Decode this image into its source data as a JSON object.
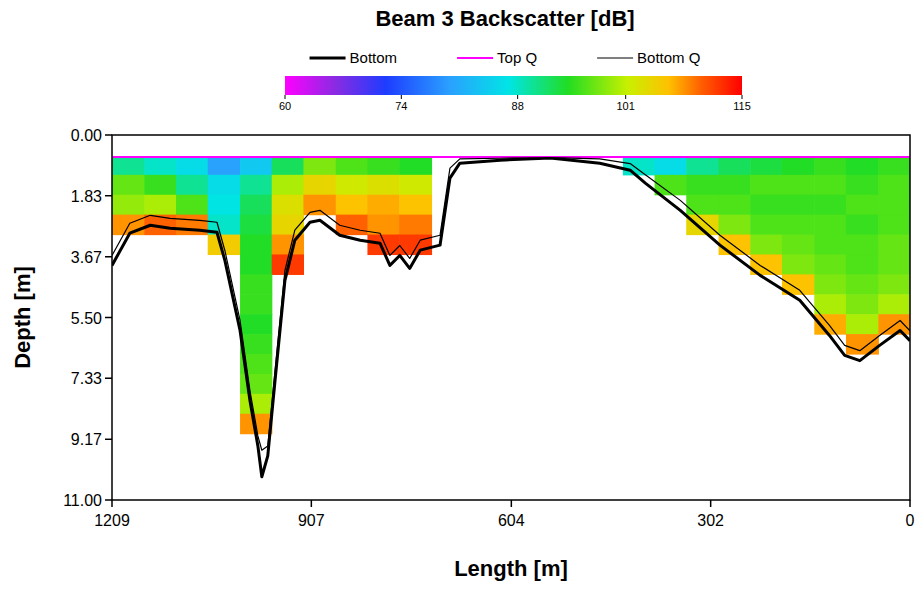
{
  "chart_data": {
    "type": "heatmap",
    "title": "Beam 3 Backscatter [dB]",
    "x_label": "Length [m]",
    "y_label": "Depth [m]",
    "xlim": [
      1209,
      0
    ],
    "ylim": [
      11,
      0
    ],
    "xticks": [
      1209,
      907,
      604,
      302,
      0
    ],
    "yticks": [
      {
        "value": 0,
        "label": "0.00"
      },
      {
        "value": 1.83,
        "label": "1.83"
      },
      {
        "value": 3.67,
        "label": "3.67"
      },
      {
        "value": 5.5,
        "label": "5.50"
      },
      {
        "value": 7.33,
        "label": "7.33"
      },
      {
        "value": 9.17,
        "label": "9.17"
      },
      {
        "value": 11,
        "label": "11.00"
      }
    ],
    "legend": "top",
    "heatmap": {
      "x_edges": [
        1209,
        1160,
        1112,
        1064,
        1015,
        967,
        919,
        870,
        822,
        774,
        725,
        677,
        629,
        580,
        532,
        484,
        435,
        387,
        339,
        290,
        242,
        194,
        145,
        97,
        48,
        0
      ],
      "y_edges": [
        0.66,
        1.2,
        1.8,
        2.4,
        3.0,
        3.6,
        4.2,
        4.8,
        5.4,
        6.0,
        6.6,
        7.2,
        7.8,
        8.4,
        9.0
      ],
      "cells": [
        [
          90,
          88,
          86,
          80,
          84,
          92,
          98,
          96,
          95,
          94,
          null,
          null,
          null,
          null,
          null,
          null,
          88,
          86,
          90,
          92,
          93,
          94,
          95,
          94,
          95
        ],
        [
          97,
          95,
          90,
          86,
          90,
          100,
          104,
          102,
          103,
          102,
          null,
          null,
          null,
          null,
          null,
          null,
          null,
          96,
          95,
          95,
          96,
          96,
          96,
          95,
          96
        ],
        [
          99,
          100,
          96,
          87,
          92,
          103,
          108,
          106,
          107,
          106,
          null,
          null,
          null,
          null,
          null,
          null,
          null,
          null,
          96,
          96,
          95,
          95,
          95,
          96,
          96
        ],
        [
          108,
          110,
          109,
          88,
          93,
          104,
          null,
          110,
          108,
          109,
          null,
          null,
          null,
          null,
          null,
          null,
          null,
          null,
          104,
          98,
          96,
          96,
          96,
          95,
          96
        ],
        [
          null,
          null,
          null,
          105,
          94,
          108,
          null,
          null,
          112,
          112,
          null,
          null,
          null,
          null,
          null,
          null,
          null,
          null,
          null,
          106,
          98,
          97,
          96,
          96,
          97
        ],
        [
          null,
          null,
          null,
          null,
          94,
          112,
          null,
          null,
          null,
          null,
          null,
          null,
          null,
          null,
          null,
          null,
          null,
          null,
          null,
          null,
          106,
          98,
          97,
          96,
          97
        ],
        [
          null,
          null,
          null,
          null,
          95,
          null,
          null,
          null,
          null,
          null,
          null,
          null,
          null,
          null,
          null,
          null,
          null,
          null,
          null,
          null,
          null,
          106,
          98,
          97,
          98
        ],
        [
          null,
          null,
          null,
          null,
          95,
          null,
          null,
          null,
          null,
          null,
          null,
          null,
          null,
          null,
          null,
          null,
          null,
          null,
          null,
          null,
          null,
          null,
          100,
          98,
          100
        ],
        [
          null,
          null,
          null,
          null,
          94,
          null,
          null,
          null,
          null,
          null,
          null,
          null,
          null,
          null,
          null,
          null,
          null,
          null,
          null,
          null,
          null,
          null,
          107,
          100,
          108
        ],
        [
          null,
          null,
          null,
          null,
          95,
          null,
          null,
          null,
          null,
          null,
          null,
          null,
          null,
          null,
          null,
          null,
          null,
          null,
          null,
          null,
          null,
          null,
          null,
          108,
          null
        ],
        [
          null,
          null,
          null,
          null,
          96,
          null,
          null,
          null,
          null,
          null,
          null,
          null,
          null,
          null,
          null,
          null,
          null,
          null,
          null,
          null,
          null,
          null,
          null,
          null,
          null
        ],
        [
          null,
          null,
          null,
          null,
          97,
          null,
          null,
          null,
          null,
          null,
          null,
          null,
          null,
          null,
          null,
          null,
          null,
          null,
          null,
          null,
          null,
          null,
          null,
          null,
          null
        ],
        [
          null,
          null,
          null,
          null,
          100,
          null,
          null,
          null,
          null,
          null,
          null,
          null,
          null,
          null,
          null,
          null,
          null,
          null,
          null,
          null,
          null,
          null,
          null,
          null,
          null
        ],
        [
          null,
          null,
          null,
          null,
          108,
          null,
          null,
          null,
          null,
          null,
          null,
          null,
          null,
          null,
          null,
          null,
          null,
          null,
          null,
          null,
          null,
          null,
          null,
          null,
          null
        ]
      ],
      "range": [
        60,
        115
      ],
      "ticks": [
        60,
        74,
        88,
        101,
        115
      ]
    },
    "series": [
      {
        "name": "Bottom",
        "color": "#000000",
        "type": "line",
        "x": [
          1209,
          1182,
          1151,
          1121,
          1076,
          1050,
          1038,
          1015,
          1000,
          988,
          982,
          973,
          962,
          947,
          932,
          909,
          894,
          864,
          833,
          803,
          788,
          773,
          758,
          742,
          712,
          697,
          682,
          621,
          545,
          470,
          424,
          401,
          348,
          288,
          227,
          167,
          122,
          99,
          76,
          46,
          15,
          0
        ],
        "values": [
          3.93,
          2.96,
          2.72,
          2.81,
          2.87,
          2.93,
          3.78,
          5.89,
          8.0,
          9.37,
          10.3,
          9.67,
          7.4,
          4.38,
          3.17,
          2.63,
          2.57,
          3.02,
          3.17,
          3.26,
          3.93,
          3.63,
          4.02,
          3.47,
          3.32,
          1.3,
          0.85,
          0.76,
          0.69,
          0.85,
          1.06,
          1.45,
          2.27,
          3.32,
          4.23,
          4.98,
          6.04,
          6.64,
          6.8,
          6.34,
          5.89,
          6.2
        ]
      },
      {
        "name": "Top Q",
        "color": "#ff00ff",
        "type": "line",
        "x": [
          1209,
          0
        ],
        "values": [
          0.66,
          0.66
        ]
      },
      {
        "name": "Bottom Q",
        "color": "#000000",
        "type": "line",
        "x": [
          1209,
          1182,
          1151,
          1121,
          1076,
          1050,
          1038,
          1015,
          1000,
          988,
          982,
          973,
          962,
          947,
          932,
          909,
          894,
          864,
          833,
          803,
          788,
          773,
          758,
          742,
          712,
          697,
          682,
          621,
          545,
          470,
          424,
          401,
          348,
          288,
          227,
          167,
          122,
          99,
          76,
          46,
          15,
          0
        ],
        "values": [
          3.63,
          2.66,
          2.42,
          2.51,
          2.57,
          2.63,
          3.48,
          5.59,
          7.7,
          9.07,
          9.5,
          9.37,
          7.1,
          4.08,
          2.87,
          2.33,
          2.27,
          2.72,
          2.87,
          2.96,
          3.63,
          3.33,
          3.72,
          3.17,
          3.02,
          1.0,
          0.72,
          0.7,
          0.68,
          0.72,
          0.86,
          1.2,
          1.97,
          3.02,
          3.93,
          4.68,
          5.74,
          6.34,
          6.5,
          6.04,
          5.59,
          5.9
        ]
      }
    ]
  }
}
